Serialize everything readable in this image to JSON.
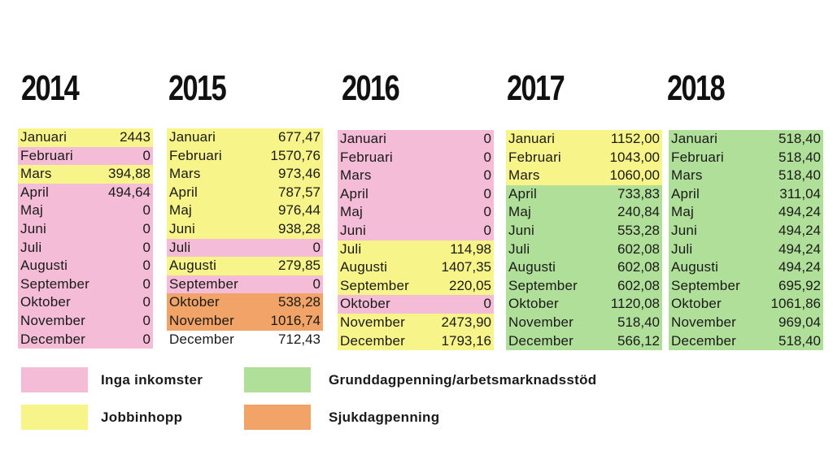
{
  "colors": {
    "none": "#f4bcd6",
    "jobb": "#f7f48a",
    "grund": "#b0df9a",
    "sjuk": "#f2a468",
    "blank": "#ffffff"
  },
  "legend": [
    {
      "key": "none",
      "label": "Inga inkomster"
    },
    {
      "key": "grund",
      "label": "Grunddagpenning/arbetsmarknadsstöd"
    },
    {
      "key": "jobb",
      "label": "Jobbinhopp"
    },
    {
      "key": "sjuk",
      "label": "Sjukdagpenning"
    }
  ],
  "chart_data": {
    "type": "table",
    "months": [
      "Januari",
      "Februari",
      "Mars",
      "April",
      "Maj",
      "Juni",
      "Juli",
      "Augusti",
      "September",
      "Oktober",
      "November",
      "December"
    ],
    "years": [
      {
        "year": "2014",
        "values": [
          "2443",
          "0",
          "394,88",
          "494,64",
          "0",
          "0",
          "0",
          "0",
          "0",
          "0",
          "0",
          "0"
        ],
        "categories": [
          "jobb",
          "none",
          "jobb",
          "none",
          "none",
          "none",
          "none",
          "none",
          "none",
          "none",
          "none",
          "none"
        ]
      },
      {
        "year": "2015",
        "values": [
          "677,47",
          "1570,76",
          "973,46",
          "787,57",
          "976,44",
          "938,28",
          "0",
          "279,85",
          "0",
          "538,28",
          "1016,74",
          "712,43"
        ],
        "categories": [
          "jobb",
          "jobb",
          "jobb",
          "jobb",
          "jobb",
          "jobb",
          "none",
          "jobb",
          "none",
          "sjuk",
          "sjuk",
          "blank"
        ]
      },
      {
        "year": "2016",
        "values": [
          "0",
          "0",
          "0",
          "0",
          "0",
          "0",
          "114,98",
          "1407,35",
          "220,05",
          "0",
          "2473,90",
          "1793,16"
        ],
        "categories": [
          "none",
          "none",
          "none",
          "none",
          "none",
          "none",
          "jobb",
          "jobb",
          "jobb",
          "none",
          "jobb",
          "jobb"
        ]
      },
      {
        "year": "2017",
        "values": [
          "1152,00",
          "1043,00",
          "1060,00",
          "733,83",
          "240,84",
          "553,28",
          "602,08",
          "602,08",
          "602,08",
          "1120,08",
          "518,40",
          "566,12"
        ],
        "categories": [
          "jobb",
          "jobb",
          "jobb",
          "grund",
          "grund",
          "grund",
          "grund",
          "grund",
          "grund",
          "grund",
          "grund",
          "grund"
        ]
      },
      {
        "year": "2018",
        "values": [
          "518,40",
          "518,40",
          "518,40",
          "311,04",
          "494,24",
          "494,24",
          "494,24",
          "494,24",
          "695,92",
          "1061,86",
          "969,04",
          "518,40"
        ],
        "categories": [
          "grund",
          "grund",
          "grund",
          "grund",
          "grund",
          "grund",
          "grund",
          "grund",
          "grund",
          "grund",
          "grund",
          "grund"
        ]
      }
    ]
  }
}
